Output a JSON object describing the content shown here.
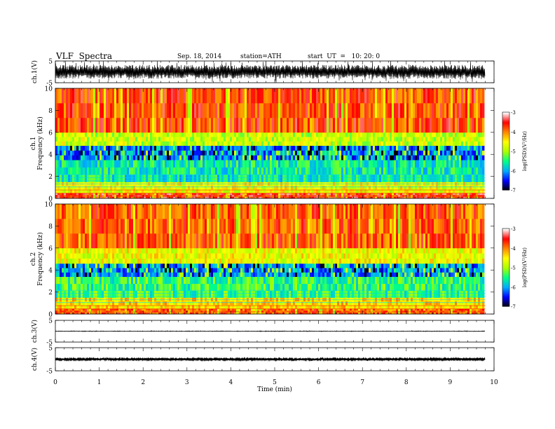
{
  "header": {
    "title": "VLF  Spectra",
    "date": "Sep. 18, 2014",
    "station": "station=ATH",
    "start": "start  UT  =   10: 20: 0"
  },
  "colors": {
    "colormap": [
      "#000000",
      "#0000ff",
      "#00aaff",
      "#00ff88",
      "#aaff00",
      "#ffff00",
      "#ff8800",
      "#ff0000",
      "#ffffff"
    ],
    "trace": "#000000"
  },
  "chart_data": [
    {
      "type": "line",
      "name": "ch1-waveform",
      "ylabel": "ch.1(V)",
      "ylim": [
        -5,
        5
      ],
      "yticks": [
        "5",
        "-5"
      ],
      "xlim": [
        0,
        10
      ],
      "waveform": {
        "mean": 0,
        "envelope_amplitude": 3.2,
        "duration_min": 9.8
      }
    },
    {
      "type": "heatmap",
      "name": "ch1-spectrogram",
      "ylabel": "ch.1  Frequency  (kHz)",
      "ylim": [
        0,
        10
      ],
      "yticks": [
        "0",
        "2",
        "4",
        "6",
        "8",
        "10"
      ],
      "xlim": [
        0,
        10
      ],
      "colorbar": {
        "label": "log(PSD)(V²/Hz)",
        "range": [
          -7,
          -3
        ],
        "ticks": [
          "-3",
          "-4",
          "-5",
          "-6",
          "-7"
        ]
      },
      "bands_khz": [
        {
          "from": 0,
          "to": 0.5,
          "log_psd": -3.6
        },
        {
          "from": 0.5,
          "to": 1.5,
          "log_psd": -4.6
        },
        {
          "from": 1.5,
          "to": 3.5,
          "log_psd": -5.6
        },
        {
          "from": 3.5,
          "to": 4.8,
          "log_psd": -6.1
        },
        {
          "from": 4.8,
          "to": 6.0,
          "log_psd": -4.8
        },
        {
          "from": 6.0,
          "to": 10.0,
          "log_psd": -3.7
        }
      ]
    },
    {
      "type": "heatmap",
      "name": "ch2-spectrogram",
      "ylabel": "ch.2  Frequency  (kHz)",
      "ylim": [
        0,
        10
      ],
      "yticks": [
        "0",
        "2",
        "4",
        "6",
        "8",
        "10"
      ],
      "xlim": [
        0,
        10
      ],
      "colorbar": {
        "label": "log(PSD)(V²/Hz)",
        "range": [
          -7,
          -3
        ],
        "ticks": [
          "-3",
          "-4",
          "-5",
          "-6",
          "-7"
        ]
      },
      "bands_khz": [
        {
          "from": 0,
          "to": 0.5,
          "log_psd": -3.8
        },
        {
          "from": 0.5,
          "to": 1.5,
          "log_psd": -4.4
        },
        {
          "from": 1.5,
          "to": 3.4,
          "log_psd": -5.4
        },
        {
          "from": 3.4,
          "to": 4.6,
          "log_psd": -6.0
        },
        {
          "from": 4.6,
          "to": 6.0,
          "log_psd": -4.6
        },
        {
          "from": 6.0,
          "to": 10.0,
          "log_psd": -3.8
        }
      ]
    },
    {
      "type": "line",
      "name": "ch3-waveform",
      "ylabel": "ch.3(V)",
      "ylim": [
        -5,
        5
      ],
      "yticks": [
        "5",
        "-5"
      ],
      "xlim": [
        0,
        10
      ],
      "waveform": {
        "mean": 0,
        "envelope_amplitude": 0.15,
        "duration_min": 9.8
      }
    },
    {
      "type": "line",
      "name": "ch4-waveform",
      "ylabel": "ch.4(V)",
      "ylim": [
        -5,
        5
      ],
      "yticks": [
        "5",
        "-5"
      ],
      "xlim": [
        0,
        10
      ],
      "xlabel": "Time  (min)",
      "xticks": [
        "0",
        "1",
        "2",
        "3",
        "4",
        "5",
        "6",
        "7",
        "8",
        "9",
        "10"
      ],
      "waveform": {
        "mean": 0,
        "envelope_amplitude": 0.4,
        "duration_min": 9.8
      }
    }
  ]
}
